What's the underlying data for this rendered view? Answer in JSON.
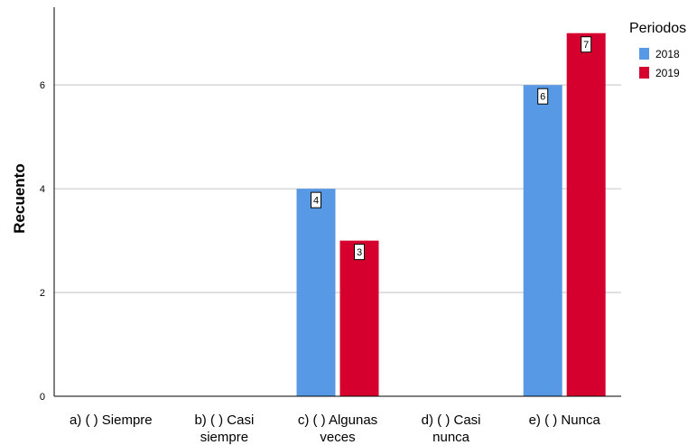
{
  "chart_data": {
    "type": "bar",
    "title": "",
    "xlabel": "",
    "ylabel": "Recuento",
    "ylim": [
      0,
      7.5
    ],
    "yticks": [
      0,
      2,
      4,
      6
    ],
    "grid": true,
    "legend_title": "Periodos",
    "legend_position": "top-right",
    "categories": [
      [
        "a) ( ) Siempre"
      ],
      [
        "b) ( ) Casi",
        "siempre"
      ],
      [
        "c) ( ) Algunas",
        "veces"
      ],
      [
        "d) ( ) Casi",
        "nunca"
      ],
      [
        "e) ( ) Nunca"
      ]
    ],
    "series": [
      {
        "name": "2018",
        "color": "#5799e5",
        "values": [
          0,
          0,
          4,
          0,
          6
        ]
      },
      {
        "name": "2019",
        "color": "#d6002e",
        "values": [
          0,
          0,
          3,
          0,
          7
        ]
      }
    ]
  }
}
